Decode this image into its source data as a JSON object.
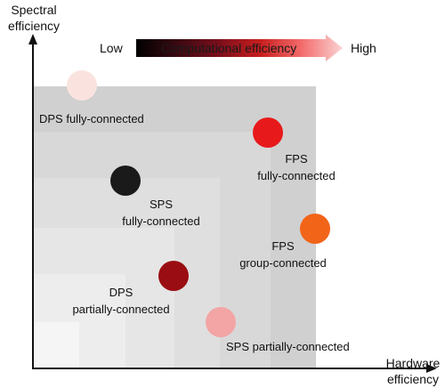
{
  "axes": {
    "y_label_line1": "Spectral",
    "y_label_line2": "efficiency",
    "x_label_line1": "Hardware",
    "x_label_line2": "efficiency"
  },
  "colorbar": {
    "low_label": "Low",
    "title": "Computational efficiency",
    "high_label": "High",
    "gradient": [
      "#000000",
      "#3a0a12",
      "#7a0f1c",
      "#c81e1e",
      "#f36b6b",
      "#fbd4d4"
    ]
  },
  "points": [
    {
      "id": "dps-fully",
      "label_line1": "DPS fully-connected",
      "label_line2": "",
      "color": "#fae3df"
    },
    {
      "id": "fps-fully",
      "label_line1": "FPS",
      "label_line2": "fully-connected",
      "color": "#e8191b"
    },
    {
      "id": "sps-fully",
      "label_line1": "SPS",
      "label_line2": "fully-connected",
      "color": "#1a1a1a"
    },
    {
      "id": "fps-group",
      "label_line1": "FPS",
      "label_line2": "group-connected",
      "color": "#f26418"
    },
    {
      "id": "dps-partial",
      "label_line1": "DPS",
      "label_line2": "partially-connected",
      "color": "#9a0d12"
    },
    {
      "id": "sps-partial",
      "label_line1": "SPS partially-connected",
      "label_line2": "",
      "color": "#f3a4a4"
    }
  ]
}
